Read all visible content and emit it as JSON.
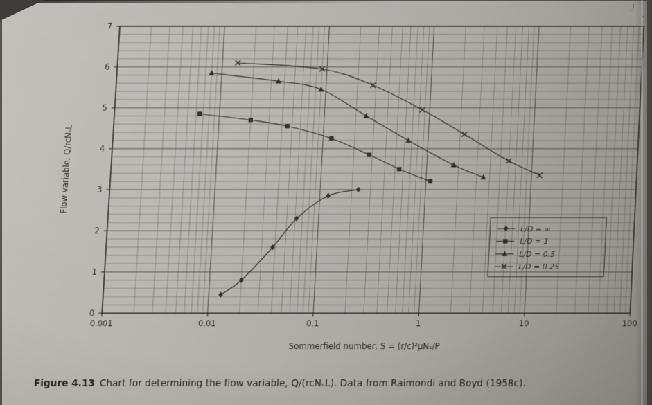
{
  "figure": {
    "caption_label": "Figure 4.13",
    "caption_text": "Chart for determining the flow variable, Q/(rcNₛL). Data from Raimondi and Boyd (1958c)."
  },
  "colors": {
    "page": "#b2afa8",
    "ink": "#2c2925",
    "grid": "#4c4a45"
  },
  "chart_data": {
    "type": "line",
    "title": "",
    "xlabel": "Sommerfield number, S = (r/c)²μNₛ/P",
    "ylabel": "Flow variable, Q/rcNₛL",
    "x_scale": "log",
    "xlim": [
      0.001,
      100
    ],
    "ylim": [
      0,
      7
    ],
    "x_ticks": [
      "0.001",
      "0.01",
      "0.1",
      "1",
      "10",
      "100"
    ],
    "y_ticks": [
      "0",
      "1",
      "2",
      "3",
      "4",
      "5",
      "6",
      "7"
    ],
    "y_minor_step": 0.2,
    "grid": "both-with-log-minors",
    "legend_position": "inside-right-lower",
    "series": [
      {
        "name": "L/D = ∞",
        "marker": "diamond",
        "x": [
          0.013,
          0.02,
          0.038,
          0.062,
          0.12,
          0.23
        ],
        "y": [
          0.45,
          0.8,
          1.6,
          2.3,
          2.85,
          3.0
        ]
      },
      {
        "name": "L/D = 1",
        "marker": "square",
        "x": [
          0.0065,
          0.02,
          0.045,
          0.12,
          0.28,
          0.55,
          1.1
        ],
        "y": [
          4.85,
          4.7,
          4.55,
          4.25,
          3.85,
          3.5,
          3.2
        ]
      },
      {
        "name": "L/D = 0.5",
        "marker": "triangle",
        "x": [
          0.008,
          0.035,
          0.09,
          0.25,
          0.65,
          1.8,
          3.5
        ],
        "y": [
          5.85,
          5.65,
          5.45,
          4.8,
          4.2,
          3.6,
          3.3
        ]
      },
      {
        "name": "L/D = 0.25",
        "marker": "x",
        "x": [
          0.014,
          0.09,
          0.28,
          0.85,
          2.2,
          6.0,
          12.0
        ],
        "y": [
          6.1,
          5.95,
          5.55,
          4.95,
          4.35,
          3.7,
          3.35
        ]
      }
    ]
  }
}
